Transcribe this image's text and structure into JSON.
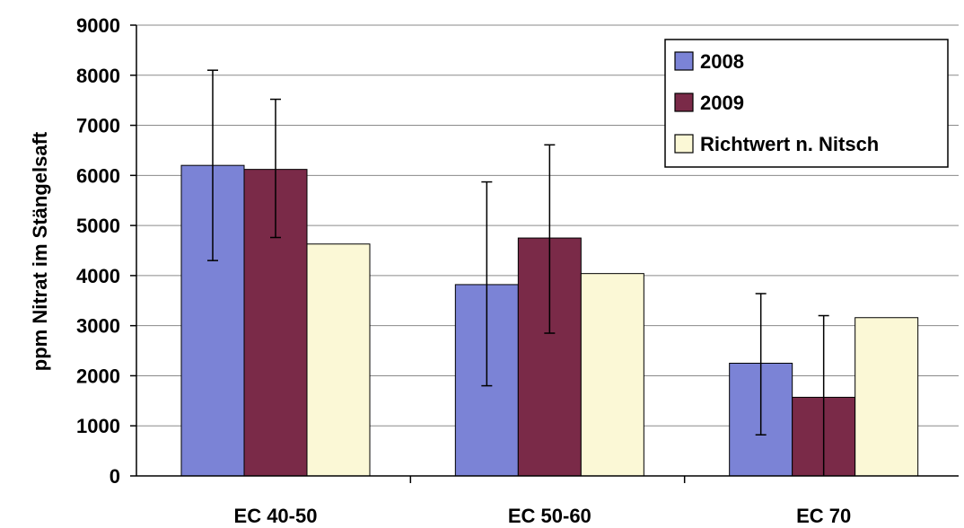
{
  "chart_data": {
    "type": "bar",
    "categories": [
      "EC 40-50",
      "EC 50-60",
      "EC 70"
    ],
    "series": [
      {
        "name": "2008",
        "values": [
          6200,
          3820,
          2250
        ],
        "error_low": [
          4300,
          1800,
          820
        ],
        "error_high": [
          8100,
          5870,
          3640
        ],
        "color": "#7b83d6"
      },
      {
        "name": "2009",
        "values": [
          6120,
          4750,
          1570
        ],
        "error_low": [
          4760,
          2850,
          0
        ],
        "error_high": [
          7520,
          6610,
          3200
        ],
        "color": "#7a2a48"
      },
      {
        "name": "Richtwert n. Nitsch",
        "values": [
          4630,
          4040,
          3160
        ],
        "color": "#fbf8d6"
      }
    ],
    "ylabel": "ppm Nitrat im Stängelsaft",
    "ylim": [
      0,
      9000
    ],
    "yticks": [
      "0",
      "1000",
      "2000",
      "3000",
      "4000",
      "5000",
      "6000",
      "7000",
      "8000",
      "9000"
    ],
    "grid": true,
    "legend_position": "top-right"
  }
}
